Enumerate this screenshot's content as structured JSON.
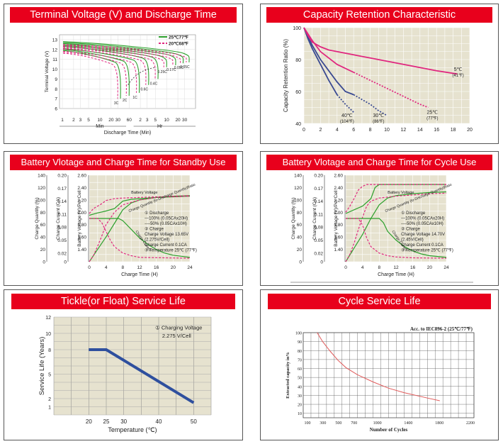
{
  "panels": {
    "p1": {
      "title": "Terminal Voltage (V) and Discharge Time"
    },
    "p2": {
      "title": "Capacity Retention Characteristic"
    },
    "p3": {
      "title": "Battery Vlotage and Charge Time for Standby Use"
    },
    "p4": {
      "title": "Battery Vlotage and Charge Time for Cycle Use"
    },
    "p5": {
      "title": "Tickle(or Float) Service Life"
    },
    "p6": {
      "title": "Cycle Service Life"
    }
  },
  "colors": {
    "red": "#e8001c",
    "grid": "#d9d5c4",
    "green": "#2ca02c",
    "pink": "#e0277f",
    "blue": "#3a4a92",
    "navy": "#2e4f9e"
  },
  "chart_data": [
    {
      "id": "discharge",
      "type": "line",
      "title": "Terminal Voltage (V) and Discharge Time",
      "ylabel": "Terminal Voltage (V)",
      "xlabel": "Discharge Time (Min)",
      "ylim": [
        6,
        13.5
      ],
      "yticks": [
        "6",
        "7",
        "8",
        "9",
        "10",
        "11",
        "12",
        "13"
      ],
      "xticks": [
        "1",
        "2",
        "3",
        "5",
        "10",
        "20",
        "30",
        "60",
        "2",
        "3",
        "5",
        "10",
        "20",
        "30"
      ],
      "unit_labels": {
        "min": "Min",
        "hr": "Hr"
      },
      "legend": [
        {
          "label": "25℃77℉",
          "style": "solid"
        },
        {
          "label": "20℃68℉",
          "style": "dashed"
        }
      ],
      "rate_labels": [
        "3C",
        "2C",
        "1C",
        "0.6C",
        "0.4C",
        "0.25C",
        "0.17C",
        "0.09C",
        "0.05C"
      ],
      "series": [
        {
          "name": "3C",
          "end_log": 1.55,
          "y0": 11.9,
          "yend": 7.0
        },
        {
          "name": "2C",
          "end_log": 1.78,
          "y0": 12.0,
          "yend": 7.3
        },
        {
          "name": "1C",
          "end_log": 2.05,
          "y0": 12.1,
          "yend": 7.6
        },
        {
          "name": "0.6C",
          "end_log": 2.3,
          "y0": 12.3,
          "yend": 8.4
        },
        {
          "name": "0.4C",
          "end_log": 2.55,
          "y0": 12.4,
          "yend": 9.0
        },
        {
          "name": "0.25C",
          "end_log": 2.78,
          "y0": 12.5,
          "yend": 10.2
        },
        {
          "name": "0.17C",
          "end_log": 3.02,
          "y0": 12.6,
          "yend": 10.4
        },
        {
          "name": "0.09C",
          "end_log": 3.22,
          "y0": 12.7,
          "yend": 10.6
        },
        {
          "name": "0.05C",
          "end_log": 3.38,
          "y0": 12.8,
          "yend": 10.7
        }
      ]
    },
    {
      "id": "retention",
      "type": "line",
      "title": "Capacity Retention Characteristic",
      "ylabel": "Capacity Retention Ratio (%)",
      "ylim": [
        40,
        100
      ],
      "xlim": [
        0,
        20
      ],
      "yticks": [
        "40",
        "60",
        "80",
        "100"
      ],
      "xticks": [
        "0",
        "2",
        "4",
        "6",
        "8",
        "10",
        "12",
        "14",
        "16",
        "18",
        "20"
      ],
      "series": [
        {
          "name": "40℃",
          "sub": "(104℉)",
          "x": [
            0,
            0.5,
            1,
            2,
            3,
            4,
            5,
            6
          ],
          "y": [
            100,
            93,
            87,
            77,
            67,
            58,
            52,
            47
          ],
          "solid_until": 4
        },
        {
          "name": "30℃",
          "sub": "(86℉)",
          "x": [
            0,
            1,
            2,
            3,
            4,
            5,
            6,
            7,
            8,
            9,
            10
          ],
          "y": [
            100,
            89,
            80,
            73,
            66,
            60,
            58,
            55,
            52,
            48,
            45
          ],
          "solid_until": 6
        },
        {
          "name": "25℃",
          "sub": "(77℉)",
          "x": [
            0,
            1,
            2,
            3,
            4,
            6,
            8,
            10,
            12,
            14,
            15
          ],
          "y": [
            100,
            92,
            85,
            81,
            77,
            72,
            67,
            62,
            57,
            52,
            50
          ],
          "solid_until": 7
        },
        {
          "name": "5℃",
          "sub": "(41℉)",
          "x": [
            0,
            0.5,
            1,
            2,
            3,
            4,
            6,
            8,
            10,
            12,
            14,
            16,
            18.5
          ],
          "y": [
            100,
            95,
            91,
            88,
            86,
            85,
            83,
            81,
            79,
            77,
            75,
            73,
            71
          ],
          "solid_until": 99
        }
      ]
    },
    {
      "id": "standby",
      "type": "line",
      "title": "Battery Vlotage and Charge Time for Standby Use",
      "axes": {
        "quantity": {
          "label": "Charge Quantity (%)",
          "ticks": [
            "140",
            "120",
            "100",
            "80",
            "60",
            "40",
            "20",
            "0"
          ]
        },
        "current": {
          "label": "Charge Current (CA)",
          "ticks": [
            "0.20",
            "0.17",
            "0.14",
            "0.11",
            "0.08",
            "0.05",
            "0.02",
            "0"
          ]
        },
        "voltage": {
          "label": "Battery Voltage (V)/Per Cell",
          "ticks": [
            "2.60",
            "2.40",
            "2.20",
            "2.00",
            "1.80",
            "1.60",
            "1.40"
          ]
        }
      },
      "xlabel": "Charge Time (H)",
      "xlim": [
        0,
        24
      ],
      "xticks": [
        "0",
        "4",
        "8",
        "12",
        "16",
        "20",
        "24"
      ],
      "curve_labels": {
        "voltage": "Battery Voltage",
        "quantity": "Charge Quantity (to-Discharge Quantity)Ratio",
        "current": "Charge Current"
      },
      "notes": [
        "① Discharge",
        "—100% (0.05CAx20H)",
        "----50% (0.05CAx10H)",
        "② Charge",
        "Charge Voltage 13.65V",
        "(2.275V/Cell)",
        "Charge Current 0.1CA",
        "③ Temperature 25℃ (77℉)"
      ],
      "series": [
        {
          "name": "voltage-100",
          "kind": "voltage",
          "style": "solid",
          "x": [
            0,
            2,
            4,
            6,
            8,
            10,
            12,
            16,
            20,
            24
          ],
          "y": [
            1.95,
            1.99,
            2.02,
            2.06,
            2.18,
            2.21,
            2.22,
            2.24,
            2.25,
            2.26
          ]
        },
        {
          "name": "voltage-50",
          "kind": "voltage",
          "style": "dashed",
          "x": [
            0,
            1,
            2,
            3,
            4,
            6,
            8,
            12,
            16,
            20,
            24
          ],
          "y": [
            1.98,
            2.06,
            2.1,
            2.14,
            2.19,
            2.22,
            2.23,
            2.24,
            2.25,
            2.25,
            2.26
          ]
        },
        {
          "name": "quantity-100",
          "kind": "quantity",
          "style": "solid",
          "x": [
            0,
            2,
            4,
            6,
            8,
            10,
            12,
            16,
            20,
            24
          ],
          "y": [
            0,
            20,
            40,
            62,
            84,
            95,
            100,
            104,
            106,
            107
          ]
        },
        {
          "name": "quantity-50",
          "kind": "quantity",
          "style": "dashed",
          "x": [
            0,
            1,
            2,
            3,
            4,
            6,
            8,
            12,
            16,
            20,
            24
          ],
          "y": [
            0,
            10,
            25,
            42,
            60,
            80,
            92,
            100,
            104,
            106,
            107
          ]
        },
        {
          "name": "current-100",
          "kind": "current",
          "style": "solid",
          "x": [
            0,
            7,
            8,
            10,
            12,
            14,
            16,
            18,
            20,
            24
          ],
          "y": [
            0.1,
            0.1,
            0.095,
            0.075,
            0.055,
            0.04,
            0.028,
            0.02,
            0.015,
            0.01
          ]
        },
        {
          "name": "current-50",
          "kind": "current",
          "style": "dashed",
          "x": [
            0,
            2,
            3,
            4,
            5,
            6,
            8,
            10,
            12,
            24
          ],
          "y": [
            0.1,
            0.1,
            0.09,
            0.07,
            0.05,
            0.035,
            0.02,
            0.014,
            0.01,
            0.008
          ]
        }
      ]
    },
    {
      "id": "cycle",
      "type": "line",
      "title": "Battery Vlotage and Charge Time for Cycle Use",
      "axes": {
        "quantity": {
          "label": "Charge Quantity (%)",
          "ticks": [
            "140",
            "120",
            "100",
            "80",
            "60",
            "40",
            "20",
            "0"
          ]
        },
        "current": {
          "label": "Charge Current (CA)",
          "ticks": [
            "0.20",
            "0.17",
            "0.14",
            "0.11",
            "0.08",
            "0.05",
            "0.02",
            "0"
          ]
        },
        "voltage": {
          "label": "Battery Voltage (V)/Per Cell",
          "ticks": [
            "2.60",
            "2.40",
            "2.20",
            "2.00",
            "1.80",
            "1.60",
            "1.40"
          ]
        }
      },
      "xlabel": "Charge Time (H)",
      "xlim": [
        0,
        24
      ],
      "xticks": [
        "0",
        "4",
        "8",
        "12",
        "16",
        "20",
        "24"
      ],
      "curve_labels": {
        "voltage": "Battery Voltage",
        "quantity": "Charge Quantity (to-Discharge Quantity)Ratio",
        "current": "Charge Current"
      },
      "notes": [
        "① Discharge",
        "—100% (0.05CAx20H)",
        "----50% (0.05CAx10H)",
        "② Charge",
        "Charge Voltage 14.70V",
        "(2.45V/Cell)",
        "Charge Current 0.1CA",
        "③ Temperature 25℃ (77℉)"
      ],
      "series": [
        {
          "name": "voltage-100",
          "kind": "voltage",
          "style": "solid",
          "x": [
            0,
            2,
            4,
            6,
            7,
            8,
            12,
            16,
            20,
            24
          ],
          "y": [
            1.98,
            2.04,
            2.1,
            2.22,
            2.4,
            2.45,
            2.45,
            2.45,
            2.45,
            2.45
          ]
        },
        {
          "name": "voltage-50",
          "kind": "voltage",
          "style": "dashed",
          "x": [
            0,
            1,
            2,
            3,
            4,
            5,
            8,
            12,
            16,
            20,
            24
          ],
          "y": [
            2.0,
            2.1,
            2.22,
            2.36,
            2.42,
            2.45,
            2.45,
            2.45,
            2.45,
            2.45,
            2.45
          ]
        },
        {
          "name": "quantity-100",
          "kind": "quantity",
          "style": "solid",
          "x": [
            0,
            2,
            4,
            6,
            8,
            10,
            12,
            16,
            20,
            24
          ],
          "y": [
            0,
            22,
            44,
            70,
            92,
            103,
            107,
            110,
            112,
            113
          ]
        },
        {
          "name": "quantity-50",
          "kind": "quantity",
          "style": "dashed",
          "x": [
            0,
            1,
            2,
            3,
            4,
            5,
            6,
            8,
            12,
            16,
            20,
            24
          ],
          "y": [
            0,
            12,
            30,
            52,
            72,
            90,
            98,
            103,
            106,
            108,
            110,
            111
          ]
        },
        {
          "name": "current-100",
          "kind": "current",
          "style": "solid",
          "x": [
            0,
            6,
            7,
            8,
            9,
            10,
            12,
            14,
            16,
            18,
            20,
            24
          ],
          "y": [
            0.1,
            0.1,
            0.1,
            0.1,
            0.09,
            0.07,
            0.05,
            0.035,
            0.025,
            0.018,
            0.014,
            0.01
          ]
        },
        {
          "name": "current-50",
          "kind": "current",
          "style": "dashed",
          "x": [
            0,
            2,
            3,
            4,
            5,
            6,
            8,
            10,
            12,
            16,
            24
          ],
          "y": [
            0.1,
            0.1,
            0.1,
            0.085,
            0.055,
            0.035,
            0.02,
            0.014,
            0.011,
            0.009,
            0.008
          ]
        }
      ]
    },
    {
      "id": "float-life",
      "type": "line",
      "title": "Tickle(or Float) Service Life",
      "ylabel": "Service Life (Years)",
      "xlabel": "Temperature (℃)",
      "xlim": [
        10,
        55
      ],
      "ylim": [
        0,
        12
      ],
      "yticks": [
        {
          "v": 1,
          "t": "1"
        },
        {
          "v": 2,
          "t": "2"
        },
        {
          "v": 5,
          "t": "5"
        },
        {
          "v": 8,
          "t": "8"
        },
        {
          "v": 10,
          "t": "10"
        },
        {
          "v": 12,
          "t": "12"
        }
      ],
      "xticks": [
        {
          "v": 20,
          "t": "20"
        },
        {
          "v": 25,
          "t": "25"
        },
        {
          "v": 30,
          "t": "30"
        },
        {
          "v": 40,
          "t": "40"
        },
        {
          "v": 50,
          "t": "50"
        }
      ],
      "note": [
        "① Charging Voltage",
        "2.275 V/Cell"
      ],
      "series": [
        {
          "name": "life",
          "x": [
            20,
            25,
            50
          ],
          "y": [
            8,
            8,
            1.5
          ]
        }
      ]
    },
    {
      "id": "cycle-life",
      "type": "line",
      "title": "Cycle Service Life",
      "ylabel": "Extracted capacity in%",
      "xlabel": "Number of Cycles",
      "annotation": "Acc. to IEC896-2 (25℃/77℉)",
      "xlim": [
        100,
        2300
      ],
      "ylim": [
        5,
        100
      ],
      "xticks": [
        {
          "v": 100,
          "t": "100"
        },
        {
          "v": 300,
          "t": "300"
        },
        {
          "v": 500,
          "t": "500"
        },
        {
          "v": 700,
          "t": "700"
        },
        {
          "v": 1000,
          "t": "1000"
        },
        {
          "v": 1400,
          "t": "1400"
        },
        {
          "v": 1800,
          "t": "1800"
        },
        {
          "v": 2200,
          "t": "2200"
        }
      ],
      "yticks": [
        {
          "v": 10,
          "t": "10"
        },
        {
          "v": 20,
          "t": "20"
        },
        {
          "v": 30,
          "t": "30"
        },
        {
          "v": 40,
          "t": "40"
        },
        {
          "v": 50,
          "t": "50"
        },
        {
          "v": 60,
          "t": "60"
        },
        {
          "v": 70,
          "t": "70"
        },
        {
          "v": 80,
          "t": "80"
        },
        {
          "v": 90,
          "t": "90"
        },
        {
          "v": 100,
          "t": "100"
        }
      ],
      "series": [
        {
          "name": "capacity",
          "x": [
            280,
            350,
            450,
            550,
            650,
            800,
            1000,
            1200,
            1400,
            1700,
            1860
          ],
          "y": [
            100,
            90,
            79,
            69,
            61,
            53,
            45,
            38,
            33,
            27,
            24
          ]
        }
      ]
    }
  ]
}
